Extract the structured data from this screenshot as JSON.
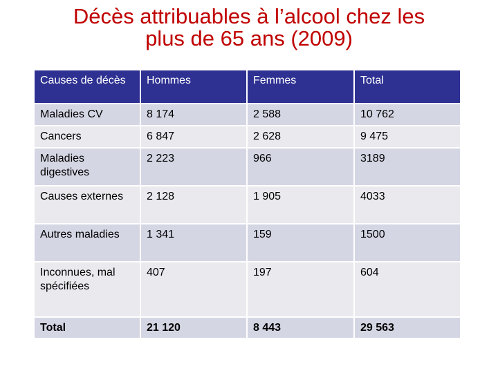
{
  "title": {
    "line1": "Décès attribuables à l’alcool chez les",
    "line2": "plus de 65 ans (2009)"
  },
  "table": {
    "headers": [
      "Causes de décès",
      "Hommes",
      "Femmes",
      "Total"
    ],
    "rows": [
      [
        "Maladies CV",
        "8 174",
        "2 588",
        "10 762"
      ],
      [
        "Cancers",
        "6 847",
        "2 628",
        "9 475"
      ],
      [
        "Maladies digestives",
        "2 223",
        "966",
        "3189"
      ],
      [
        "Causes externes",
        "2 128",
        "1 905",
        "4033"
      ],
      [
        "Autres maladies",
        "1 341",
        "159",
        "1500"
      ],
      [
        "Inconnues, mal spécifiées",
        "407",
        "197",
        "604"
      ],
      [
        "Total",
        "21 120",
        "8 443",
        "29 563"
      ]
    ]
  },
  "colors": {
    "title": "#c00000",
    "header_bg": "#2e3192",
    "row_bg": "#e9e9ee",
    "row_alt_bg": "#d5d6e4"
  }
}
